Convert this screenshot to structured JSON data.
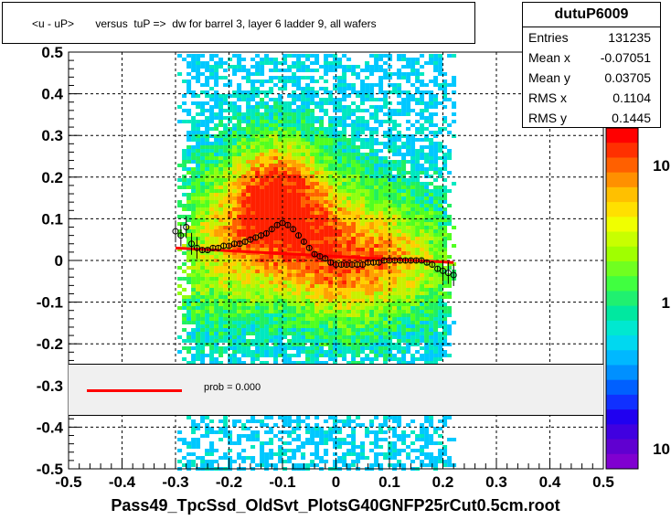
{
  "title": "<u - uP>       versus  tuP =>  dw for barrel 3, layer 6 ladder 9, all wafers",
  "stats": {
    "name": "dutuP6009",
    "rows": [
      {
        "label": "Entries",
        "value": "131235"
      },
      {
        "label": "Mean x",
        "value": "-0.07051"
      },
      {
        "label": "Mean y",
        "value": "0.03705"
      },
      {
        "label": "RMS x",
        "value": "0.1104"
      },
      {
        "label": "RMS y",
        "value": "0.1445"
      }
    ]
  },
  "legend": {
    "text": "prob = 0.000",
    "color": "#ff0000"
  },
  "palette_labels": [
    "10",
    "1",
    "10"
  ],
  "chart_data": {
    "type": "heatmap",
    "xlabel": "Pass49_TpcSsd_OldSvt_PlotsG40GNFP25rCut0.5cm.root",
    "ylabel": "",
    "xlim": [
      -0.5,
      0.5
    ],
    "ylim": [
      -0.5,
      0.5
    ],
    "xticks": [
      "-0.5",
      "-0.4",
      "-0.3",
      "-0.2",
      "-0.1",
      "0",
      "0.1",
      "0.2",
      "0.3",
      "0.4",
      "0.5"
    ],
    "yticks": [
      "-0.5",
      "-0.4",
      "-0.3",
      "-0.2",
      "-0.1",
      "0",
      "0.1",
      "0.2",
      "0.3",
      "0.4",
      "0.5"
    ],
    "grid": true,
    "profile_points": {
      "x": [
        -0.3,
        -0.29,
        -0.28,
        -0.27,
        -0.26,
        -0.25,
        -0.24,
        -0.23,
        -0.22,
        -0.21,
        -0.2,
        -0.19,
        -0.18,
        -0.17,
        -0.16,
        -0.15,
        -0.14,
        -0.13,
        -0.12,
        -0.11,
        -0.1,
        -0.09,
        -0.08,
        -0.07,
        -0.06,
        -0.05,
        -0.04,
        -0.03,
        -0.02,
        -0.01,
        0.0,
        0.01,
        0.02,
        0.03,
        0.04,
        0.05,
        0.06,
        0.07,
        0.08,
        0.09,
        0.1,
        0.11,
        0.12,
        0.13,
        0.14,
        0.15,
        0.16,
        0.17,
        0.18,
        0.19,
        0.2,
        0.21,
        0.22
      ],
      "y": [
        0.07,
        0.06,
        0.08,
        0.04,
        0.03,
        0.025,
        0.025,
        0.03,
        0.03,
        0.035,
        0.035,
        0.04,
        0.04,
        0.045,
        0.05,
        0.055,
        0.06,
        0.065,
        0.075,
        0.085,
        0.09,
        0.085,
        0.075,
        0.06,
        0.045,
        0.03,
        0.015,
        0.01,
        0.005,
        -0.005,
        -0.01,
        -0.01,
        -0.01,
        -0.01,
        -0.01,
        -0.01,
        -0.005,
        -0.005,
        -0.005,
        0.0,
        0.0,
        0.0,
        0.0,
        0.0,
        0.0,
        0.0,
        0.0,
        -0.005,
        -0.01,
        -0.02,
        -0.025,
        -0.03,
        -0.035
      ]
    },
    "fit_line": {
      "x": [
        -0.3,
        0.22
      ],
      "y": [
        0.03,
        -0.005
      ],
      "color": "#ff0000"
    }
  }
}
